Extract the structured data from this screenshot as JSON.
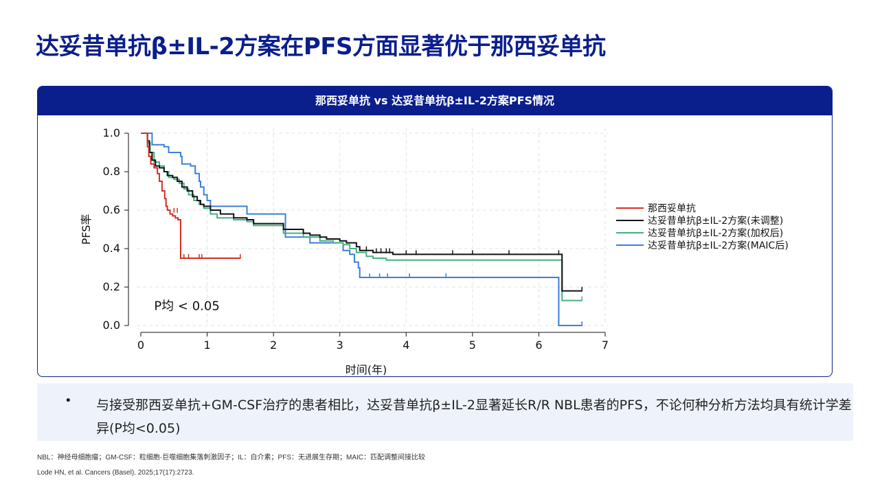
{
  "page": {
    "title": "达妥昔单抗β±IL-2方案在PFS方面显著优于那西妥单抗",
    "panel_title": "那西妥单抗 vs 达妥昔单抗β±IL-2方案PFS情况",
    "bullet": "与接受那西妥单抗+GM-CSF治疗的患者相比，达妥昔单抗β±IL-2显著延长R/R NBL患者的PFS，不论何种分析方法均具有统计学差异(P均<0.05)",
    "footnote_abbrev": "NBL：神经母细胞瘤；GM-CSF：粒细胞-巨噬细胞集落刺激因子；IL：白介素；PFS：无进展生存期；MAIC：匹配调整间接比较",
    "reference": "Lode HN, et al. Cancers (Basel). 2025;17(17):2723."
  },
  "chart_data": {
    "type": "line",
    "subtype": "kaplan-meier",
    "xlabel": "时间(年)",
    "ylabel": "PFS率",
    "xlim": [
      0,
      7
    ],
    "ylim": [
      0,
      1.0
    ],
    "xticks": [
      0,
      1,
      2,
      3,
      4,
      5,
      6,
      7
    ],
    "yticks": [
      0.0,
      0.2,
      0.4,
      0.6,
      0.8,
      1.0
    ],
    "grid": true,
    "legend_position": "right",
    "annotation": "P均 < 0.05",
    "series": [
      {
        "name": "那西妥单抗",
        "color": "#d62d20",
        "steps": [
          [
            0,
            1.0
          ],
          [
            0.08,
            1.0
          ],
          [
            0.1,
            0.93
          ],
          [
            0.12,
            0.88
          ],
          [
            0.15,
            0.84
          ],
          [
            0.2,
            0.82
          ],
          [
            0.25,
            0.79
          ],
          [
            0.28,
            0.75
          ],
          [
            0.32,
            0.7
          ],
          [
            0.36,
            0.66
          ],
          [
            0.38,
            0.62
          ],
          [
            0.4,
            0.6
          ],
          [
            0.44,
            0.58
          ],
          [
            0.48,
            0.57
          ],
          [
            0.52,
            0.56
          ],
          [
            0.56,
            0.55
          ],
          [
            0.6,
            0.35
          ],
          [
            1.5,
            0.35
          ]
        ],
        "censored": [
          [
            0.5,
            0.59
          ],
          [
            0.55,
            0.59
          ],
          [
            0.65,
            0.35
          ],
          [
            0.72,
            0.35
          ],
          [
            0.88,
            0.35
          ],
          [
            0.92,
            0.35
          ],
          [
            1.5,
            0.35
          ]
        ]
      },
      {
        "name": "达妥昔单抗β±IL-2方案(未调整)",
        "color": "#111111",
        "steps": [
          [
            0,
            1.0
          ],
          [
            0.08,
            1.0
          ],
          [
            0.1,
            0.96
          ],
          [
            0.13,
            0.9
          ],
          [
            0.17,
            0.86
          ],
          [
            0.22,
            0.83
          ],
          [
            0.28,
            0.82
          ],
          [
            0.35,
            0.8
          ],
          [
            0.4,
            0.78
          ],
          [
            0.48,
            0.77
          ],
          [
            0.55,
            0.75
          ],
          [
            0.62,
            0.72
          ],
          [
            0.7,
            0.7
          ],
          [
            0.78,
            0.67
          ],
          [
            0.85,
            0.65
          ],
          [
            0.9,
            0.63
          ],
          [
            0.95,
            0.62
          ],
          [
            1.05,
            0.6
          ],
          [
            1.2,
            0.58
          ],
          [
            1.4,
            0.56
          ],
          [
            1.6,
            0.55
          ],
          [
            1.7,
            0.53
          ],
          [
            2.1,
            0.53
          ],
          [
            2.15,
            0.5
          ],
          [
            2.45,
            0.48
          ],
          [
            2.55,
            0.47
          ],
          [
            2.7,
            0.46
          ],
          [
            2.8,
            0.45
          ],
          [
            3.0,
            0.44
          ],
          [
            3.1,
            0.43
          ],
          [
            3.25,
            0.41
          ],
          [
            3.3,
            0.39
          ],
          [
            3.5,
            0.38
          ],
          [
            3.8,
            0.37
          ],
          [
            6.35,
            0.37
          ],
          [
            6.35,
            0.18
          ],
          [
            6.65,
            0.18
          ]
        ],
        "censored": [
          [
            3.4,
            0.39
          ],
          [
            3.55,
            0.38
          ],
          [
            3.62,
            0.38
          ],
          [
            3.7,
            0.38
          ],
          [
            3.75,
            0.38
          ],
          [
            4.0,
            0.37
          ],
          [
            4.15,
            0.37
          ],
          [
            4.7,
            0.37
          ],
          [
            5.0,
            0.37
          ],
          [
            5.55,
            0.37
          ],
          [
            6.3,
            0.37
          ],
          [
            6.65,
            0.18
          ]
        ]
      },
      {
        "name": "达妥昔单抗β±IL-2方案(加权后)",
        "color": "#45b080",
        "steps": [
          [
            0,
            1.0
          ],
          [
            0.08,
            1.0
          ],
          [
            0.1,
            0.95
          ],
          [
            0.14,
            0.9
          ],
          [
            0.2,
            0.85
          ],
          [
            0.28,
            0.83
          ],
          [
            0.35,
            0.8
          ],
          [
            0.42,
            0.77
          ],
          [
            0.5,
            0.76
          ],
          [
            0.58,
            0.74
          ],
          [
            0.65,
            0.71
          ],
          [
            0.72,
            0.68
          ],
          [
            0.8,
            0.65
          ],
          [
            0.88,
            0.63
          ],
          [
            0.95,
            0.61
          ],
          [
            1.05,
            0.58
          ],
          [
            1.15,
            0.56
          ],
          [
            1.4,
            0.55
          ],
          [
            1.6,
            0.54
          ],
          [
            1.7,
            0.52
          ],
          [
            2.1,
            0.52
          ],
          [
            2.15,
            0.48
          ],
          [
            2.45,
            0.46
          ],
          [
            2.7,
            0.44
          ],
          [
            2.9,
            0.43
          ],
          [
            3.05,
            0.42
          ],
          [
            3.15,
            0.4
          ],
          [
            3.25,
            0.38
          ],
          [
            3.4,
            0.36
          ],
          [
            3.5,
            0.35
          ],
          [
            3.7,
            0.34
          ],
          [
            6.35,
            0.34
          ],
          [
            6.35,
            0.13
          ],
          [
            6.65,
            0.13
          ]
        ],
        "censored": [
          [
            6.65,
            0.13
          ]
        ]
      },
      {
        "name": "达妥昔单抗β±IL-2方案(MAIC后)",
        "color": "#3b7ddd",
        "steps": [
          [
            0,
            1.0
          ],
          [
            0.15,
            1.0
          ],
          [
            0.17,
            0.94
          ],
          [
            0.35,
            0.93
          ],
          [
            0.42,
            0.9
          ],
          [
            0.6,
            0.88
          ],
          [
            0.62,
            0.84
          ],
          [
            0.75,
            0.83
          ],
          [
            0.82,
            0.79
          ],
          [
            0.88,
            0.75
          ],
          [
            0.9,
            0.72
          ],
          [
            0.95,
            0.68
          ],
          [
            1.0,
            0.65
          ],
          [
            1.05,
            0.62
          ],
          [
            1.55,
            0.62
          ],
          [
            1.6,
            0.58
          ],
          [
            2.15,
            0.58
          ],
          [
            2.18,
            0.46
          ],
          [
            2.5,
            0.46
          ],
          [
            2.55,
            0.43
          ],
          [
            3.0,
            0.43
          ],
          [
            3.05,
            0.39
          ],
          [
            3.15,
            0.37
          ],
          [
            3.22,
            0.33
          ],
          [
            3.28,
            0.3
          ],
          [
            3.3,
            0.25
          ],
          [
            6.3,
            0.25
          ],
          [
            6.3,
            0.0
          ],
          [
            6.65,
            0.0
          ]
        ],
        "censored": [
          [
            3.45,
            0.25
          ],
          [
            3.6,
            0.25
          ],
          [
            3.72,
            0.25
          ],
          [
            4.05,
            0.25
          ],
          [
            4.6,
            0.25
          ],
          [
            6.65,
            0.0
          ]
        ]
      }
    ]
  }
}
